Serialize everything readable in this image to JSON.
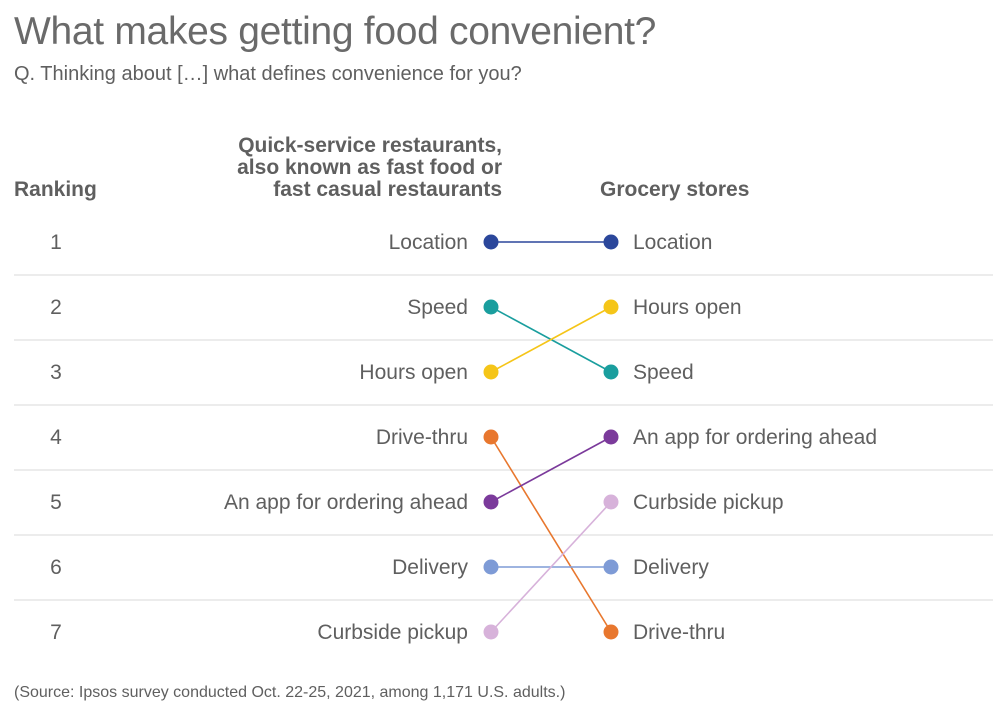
{
  "title": "What makes getting food convenient?",
  "subtitle": "Q. Thinking about […] what defines convenience for you?",
  "source": "(Source: Ipsos survey conducted Oct. 22-25, 2021, among 1,171 U.S. adults.)",
  "chart_data": {
    "type": "slope",
    "rank_header": "Ranking",
    "ranks": [
      1,
      2,
      3,
      4,
      5,
      6,
      7
    ],
    "left_header": [
      "Quick-service restaurants,",
      "also known as fast food or",
      "fast casual restaurants"
    ],
    "right_header": "Grocery stores",
    "left_order": [
      "Location",
      "Speed",
      "Hours open",
      "Drive-thru",
      "An app for ordering ahead",
      "Delivery",
      "Curbside pickup"
    ],
    "right_order": [
      "Location",
      "Hours open",
      "Speed",
      "An app for ordering ahead",
      "Curbside pickup",
      "Delivery",
      "Drive-thru"
    ],
    "items": [
      {
        "name": "Location",
        "left_rank": 1,
        "right_rank": 1,
        "color": "#2b479b"
      },
      {
        "name": "Speed",
        "left_rank": 2,
        "right_rank": 3,
        "color": "#1a9e9e"
      },
      {
        "name": "Hours open",
        "left_rank": 3,
        "right_rank": 2,
        "color": "#f5c518"
      },
      {
        "name": "Drive-thru",
        "left_rank": 4,
        "right_rank": 7,
        "color": "#e8772e"
      },
      {
        "name": "An app for ordering ahead",
        "left_rank": 5,
        "right_rank": 4,
        "color": "#7b3a9b"
      },
      {
        "name": "Delivery",
        "left_rank": 6,
        "right_rank": 6,
        "color": "#7e9bd6"
      },
      {
        "name": "Curbside pickup",
        "left_rank": 7,
        "right_rank": 5,
        "color": "#d7b2da"
      }
    ]
  }
}
